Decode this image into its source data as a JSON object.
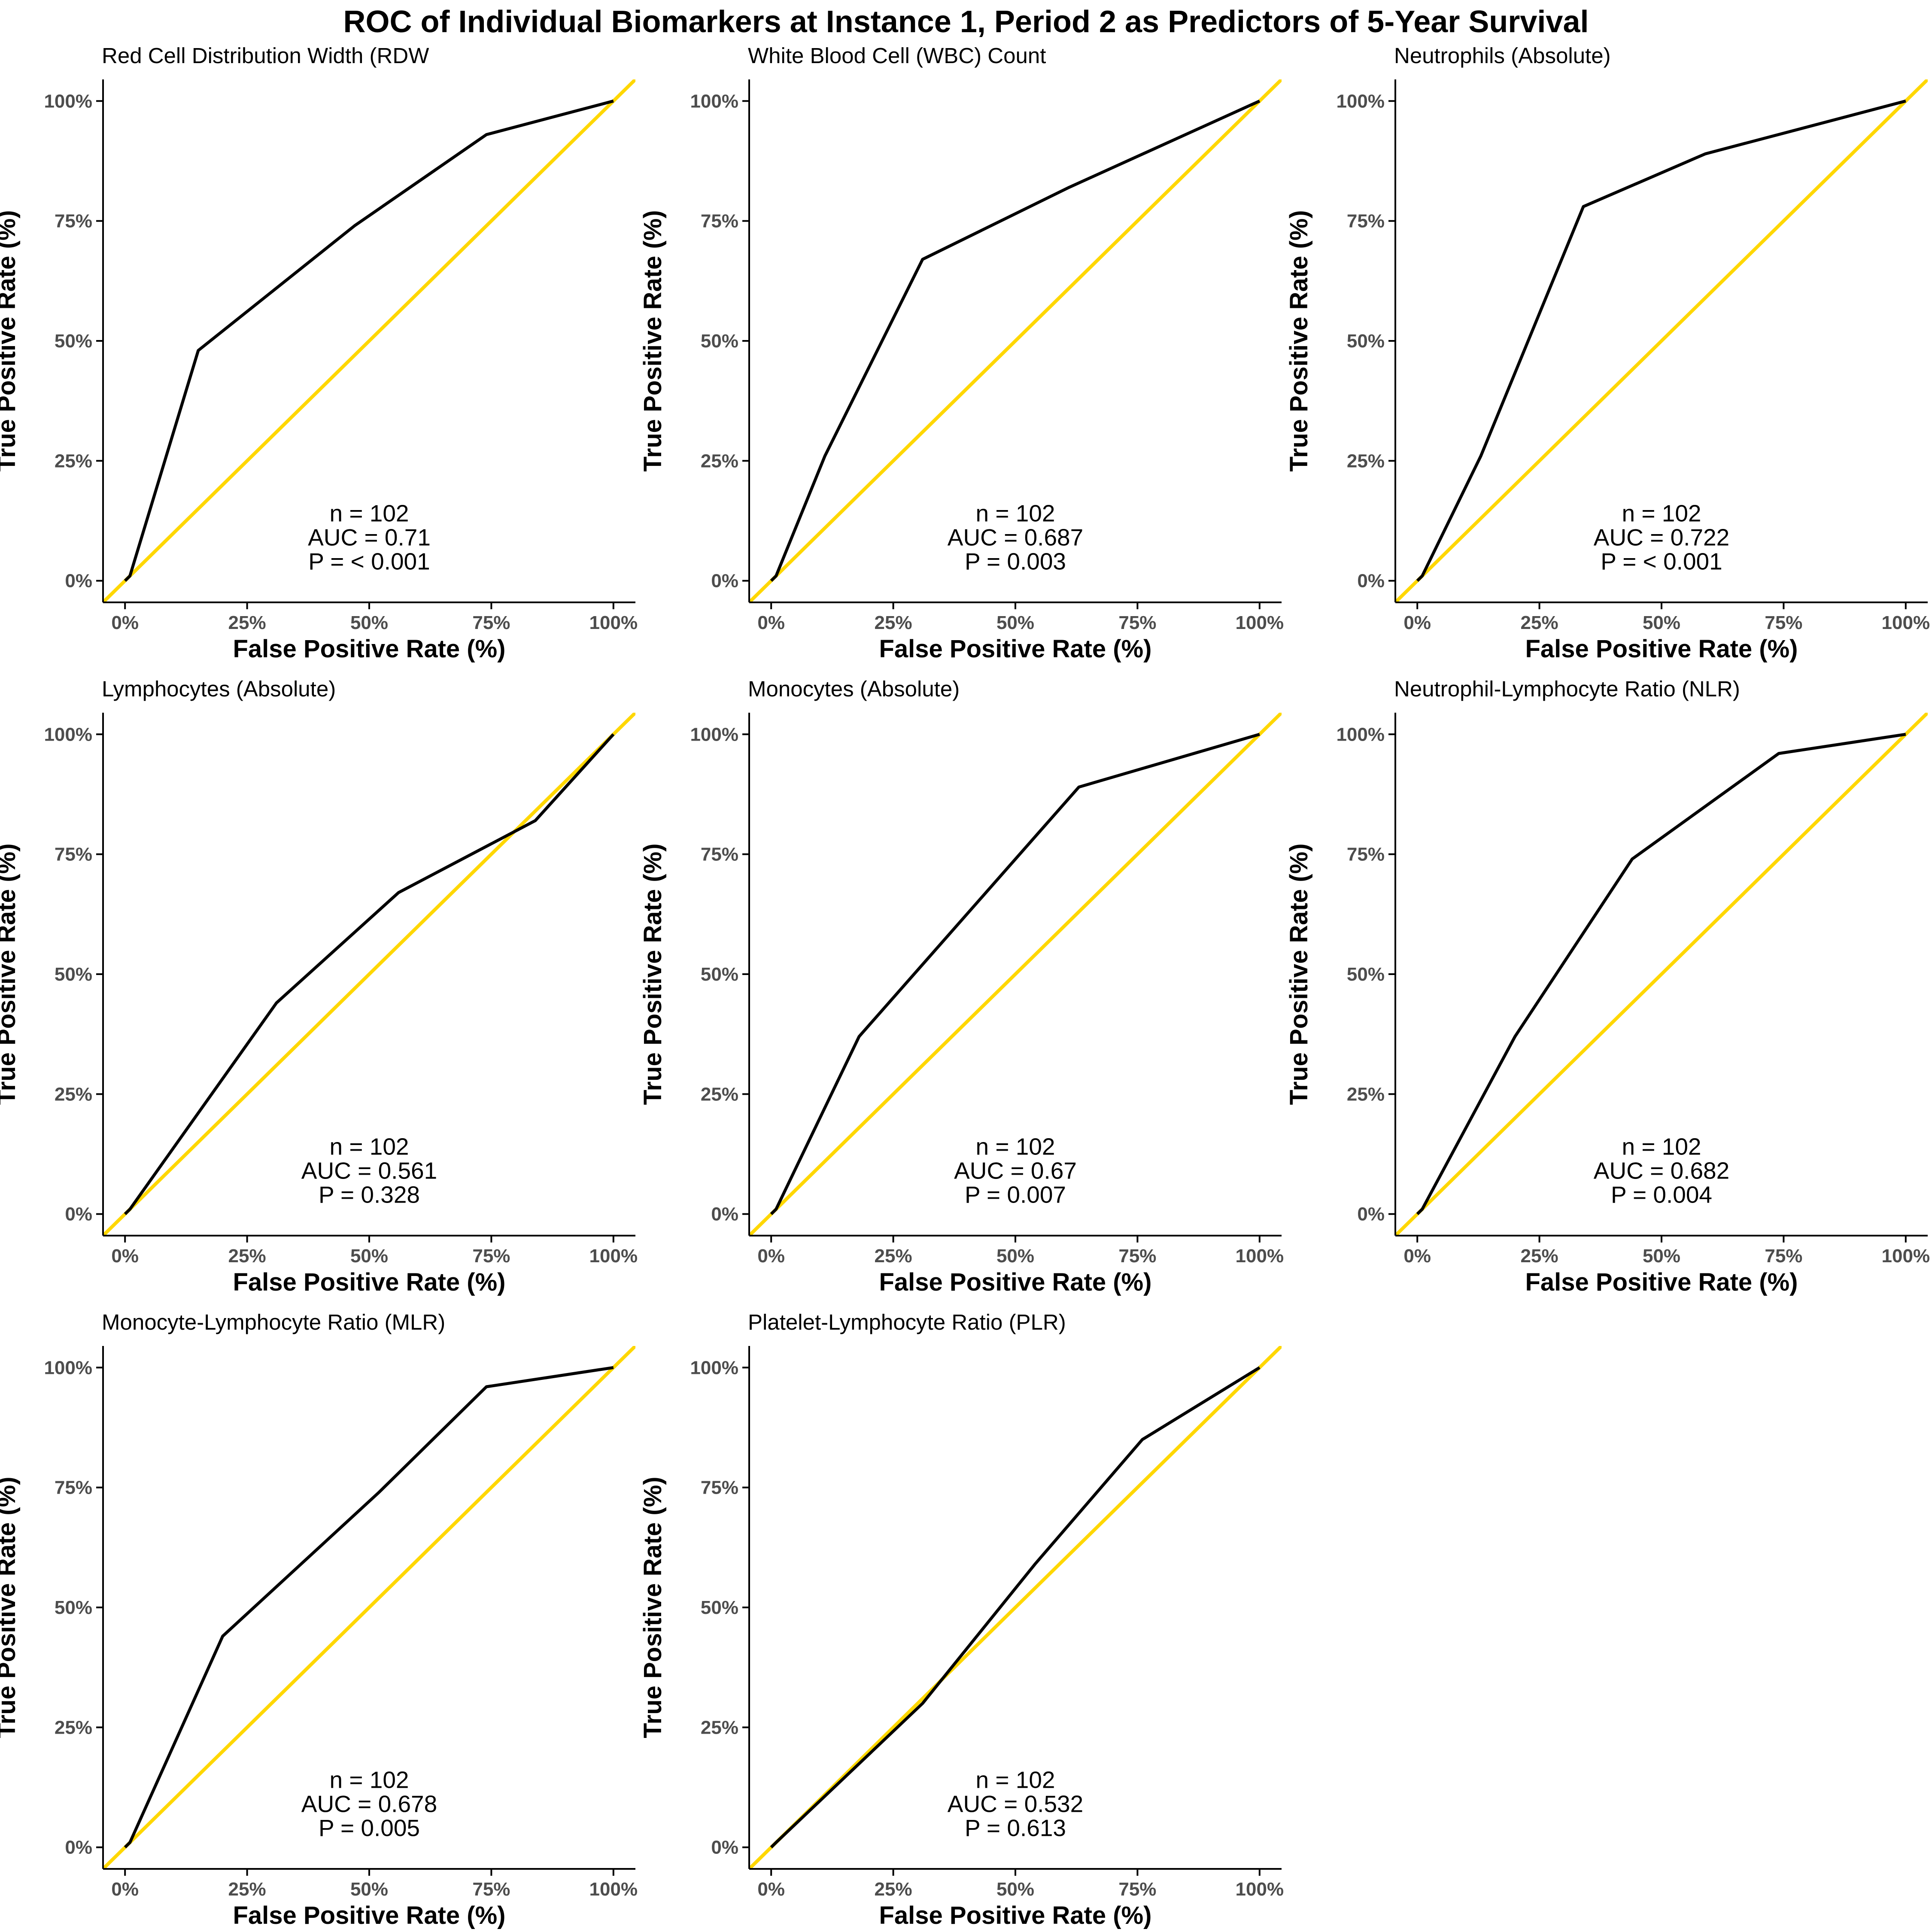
{
  "figure_title": "ROC of Individual Biomarkers at Instance 1, Period 2 as Predictors of 5-Year Survival",
  "colors": {
    "roc_line": "#000000",
    "reference_line": "#FFD700",
    "axis": "#000000",
    "tick_text": "#4d4d4d"
  },
  "chart_data": [
    {
      "type": "line",
      "title": "Red Cell Distribution Width (RDW",
      "xlabel": "False Positive Rate (%)",
      "ylabel": "True Positive Rate (%)",
      "xlim": [
        0,
        100
      ],
      "ylim": [
        0,
        100
      ],
      "x_ticks": [
        "0%",
        "25%",
        "50%",
        "75%",
        "100%"
      ],
      "y_ticks": [
        "0%",
        "25%",
        "50%",
        "75%",
        "100%"
      ],
      "grid": false,
      "series": [
        {
          "x": [
            0,
            1,
            15,
            47,
            74,
            100
          ],
          "y": [
            0,
            1,
            48,
            74,
            93,
            100
          ]
        },
        {
          "x": [
            0,
            100
          ],
          "y": [
            0,
            100
          ]
        }
      ],
      "annotation": {
        "n": "n = 102",
        "auc": "AUC = 0.71",
        "p": "P = < 0.001"
      }
    },
    {
      "type": "line",
      "title": "White Blood Cell (WBC) Count",
      "xlabel": "False Positive Rate (%)",
      "ylabel": "True Positive Rate (%)",
      "xlim": [
        0,
        100
      ],
      "ylim": [
        0,
        100
      ],
      "x_ticks": [
        "0%",
        "25%",
        "50%",
        "75%",
        "100%"
      ],
      "y_ticks": [
        "0%",
        "25%",
        "50%",
        "75%",
        "100%"
      ],
      "grid": false,
      "series": [
        {
          "x": [
            0,
            1,
            11,
            31,
            61,
            100
          ],
          "y": [
            0,
            1,
            26,
            67,
            82,
            100
          ]
        },
        {
          "x": [
            0,
            100
          ],
          "y": [
            0,
            100
          ]
        }
      ],
      "annotation": {
        "n": "n = 102",
        "auc": "AUC = 0.687",
        "p": "P = 0.003"
      }
    },
    {
      "type": "line",
      "title": "Neutrophils (Absolute)",
      "xlabel": "False Positive Rate (%)",
      "ylabel": "True Positive Rate (%)",
      "xlim": [
        0,
        100
      ],
      "ylim": [
        0,
        100
      ],
      "x_ticks": [
        "0%",
        "25%",
        "50%",
        "75%",
        "100%"
      ],
      "y_ticks": [
        "0%",
        "25%",
        "50%",
        "75%",
        "100%"
      ],
      "grid": false,
      "series": [
        {
          "x": [
            0,
            1,
            13,
            34,
            59,
            100
          ],
          "y": [
            0,
            1,
            26,
            78,
            89,
            100
          ]
        },
        {
          "x": [
            0,
            100
          ],
          "y": [
            0,
            100
          ]
        }
      ],
      "annotation": {
        "n": "n = 102",
        "auc": "AUC = 0.722",
        "p": "P = < 0.001"
      }
    },
    {
      "type": "line",
      "title": "Lymphocytes (Absolute)",
      "xlabel": "False Positive Rate (%)",
      "ylabel": "True Positive Rate (%)",
      "xlim": [
        0,
        100
      ],
      "ylim": [
        0,
        100
      ],
      "x_ticks": [
        "0%",
        "25%",
        "50%",
        "75%",
        "100%"
      ],
      "y_ticks": [
        "0%",
        "25%",
        "50%",
        "75%",
        "100%"
      ],
      "grid": false,
      "series": [
        {
          "x": [
            0,
            1,
            31,
            56,
            84,
            100
          ],
          "y": [
            0,
            1,
            44,
            67,
            82,
            100
          ]
        },
        {
          "x": [
            0,
            100
          ],
          "y": [
            0,
            100
          ]
        }
      ],
      "annotation": {
        "n": "n = 102",
        "auc": "AUC = 0.561",
        "p": "P = 0.328"
      }
    },
    {
      "type": "line",
      "title": "Monocytes (Absolute)",
      "xlabel": "False Positive Rate (%)",
      "ylabel": "True Positive Rate (%)",
      "xlim": [
        0,
        100
      ],
      "ylim": [
        0,
        100
      ],
      "x_ticks": [
        "0%",
        "25%",
        "50%",
        "75%",
        "100%"
      ],
      "y_ticks": [
        "0%",
        "25%",
        "50%",
        "75%",
        "100%"
      ],
      "grid": false,
      "series": [
        {
          "x": [
            0,
            1,
            18,
            63,
            100
          ],
          "y": [
            0,
            1,
            37,
            89,
            100
          ]
        },
        {
          "x": [
            0,
            100
          ],
          "y": [
            0,
            100
          ]
        }
      ],
      "annotation": {
        "n": "n = 102",
        "auc": "AUC = 0.67",
        "p": "P = 0.007"
      }
    },
    {
      "type": "line",
      "title": "Neutrophil-Lymphocyte Ratio (NLR)",
      "xlabel": "False Positive Rate (%)",
      "ylabel": "True Positive Rate (%)",
      "xlim": [
        0,
        100
      ],
      "ylim": [
        0,
        100
      ],
      "x_ticks": [
        "0%",
        "25%",
        "50%",
        "75%",
        "100%"
      ],
      "y_ticks": [
        "0%",
        "25%",
        "50%",
        "75%",
        "100%"
      ],
      "grid": false,
      "series": [
        {
          "x": [
            0,
            1,
            20,
            44,
            74,
            100
          ],
          "y": [
            0,
            1,
            37,
            74,
            96,
            100
          ]
        },
        {
          "x": [
            0,
            100
          ],
          "y": [
            0,
            100
          ]
        }
      ],
      "annotation": {
        "n": "n = 102",
        "auc": "AUC = 0.682",
        "p": "P = 0.004"
      }
    },
    {
      "type": "line",
      "title": "Monocyte-Lymphocyte Ratio (MLR)",
      "xlabel": "False Positive Rate (%)",
      "ylabel": "True Positive Rate (%)",
      "xlim": [
        0,
        100
      ],
      "ylim": [
        0,
        100
      ],
      "x_ticks": [
        "0%",
        "25%",
        "50%",
        "75%",
        "100%"
      ],
      "y_ticks": [
        "0%",
        "25%",
        "50%",
        "75%",
        "100%"
      ],
      "grid": false,
      "series": [
        {
          "x": [
            0,
            1,
            20,
            52,
            74,
            100
          ],
          "y": [
            0,
            1,
            44,
            74,
            96,
            100
          ]
        },
        {
          "x": [
            0,
            100
          ],
          "y": [
            0,
            100
          ]
        }
      ],
      "annotation": {
        "n": "n = 102",
        "auc": "AUC = 0.678",
        "p": "P = 0.005"
      }
    },
    {
      "type": "line",
      "title": "Platelet-Lymphocyte Ratio (PLR)",
      "xlabel": "False Positive Rate (%)",
      "ylabel": "True Positive Rate (%)",
      "xlim": [
        0,
        100
      ],
      "ylim": [
        0,
        100
      ],
      "x_ticks": [
        "0%",
        "25%",
        "50%",
        "75%",
        "100%"
      ],
      "y_ticks": [
        "0%",
        "25%",
        "50%",
        "75%",
        "100%"
      ],
      "grid": false,
      "series": [
        {
          "x": [
            0,
            1,
            31,
            54,
            76,
            100
          ],
          "y": [
            0,
            1,
            30,
            59,
            85,
            100
          ]
        },
        {
          "x": [
            0,
            100
          ],
          "y": [
            0,
            100
          ]
        }
      ],
      "annotation": {
        "n": "n = 102",
        "auc": "AUC = 0.532",
        "p": "P = 0.613"
      }
    }
  ]
}
